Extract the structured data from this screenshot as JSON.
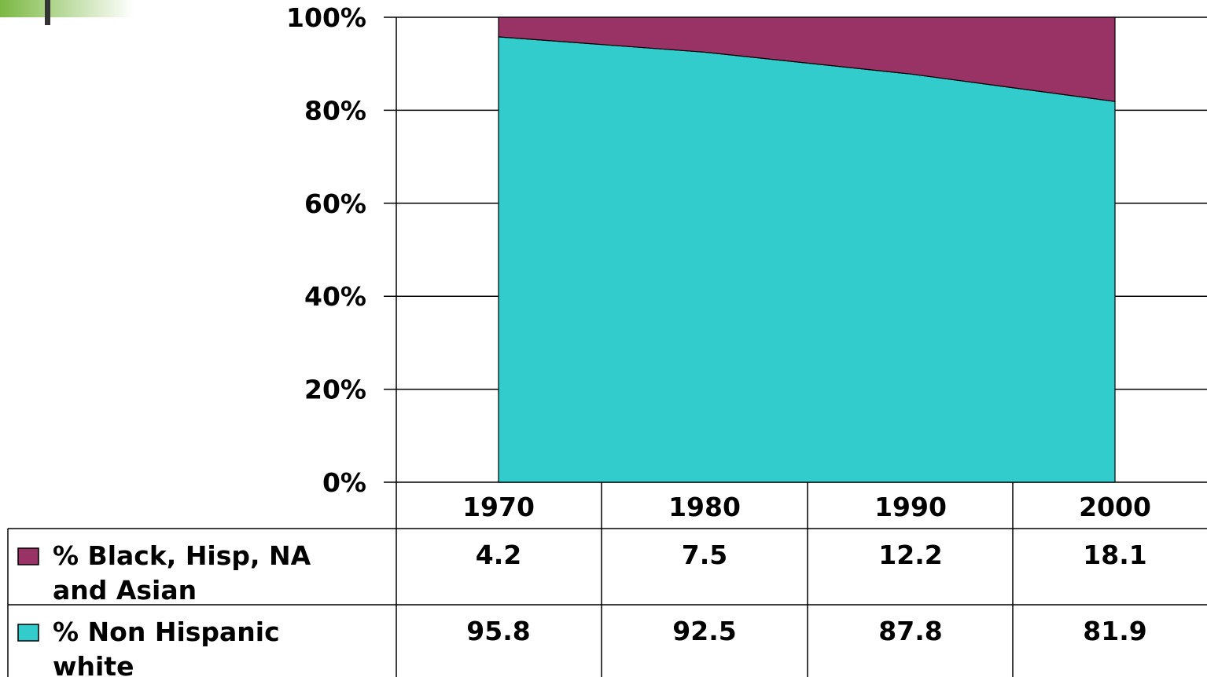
{
  "chart_data": {
    "type": "area",
    "stacked": "percent",
    "title": "",
    "xlabel": "",
    "ylabel": "",
    "categories": [
      "1970",
      "1980",
      "1990",
      "2000"
    ],
    "y_ticks": [
      "0%",
      "20%",
      "40%",
      "60%",
      "80%",
      "100%"
    ],
    "ylim": [
      0,
      100
    ],
    "grid": true,
    "series": [
      {
        "name": "% Non Hispanic white",
        "name_lines": [
          "% Non Hispanic",
          "white"
        ],
        "values": [
          95.8,
          92.5,
          87.8,
          81.9
        ],
        "labels": [
          "95.8",
          "92.5",
          "87.8",
          "81.9"
        ],
        "color": "#33cccc"
      },
      {
        "name": "% Black, Hisp, NA and Asian",
        "name_lines": [
          "% Black, Hisp, NA",
          "and Asian"
        ],
        "values": [
          4.2,
          7.5,
          12.2,
          18.1
        ],
        "labels": [
          "4.2",
          "7.5",
          "12.2",
          "18.1"
        ],
        "color": "#993366"
      }
    ],
    "data_table_order": [
      "% Black, Hisp, NA and Asian",
      "% Non Hispanic white"
    ],
    "legend_placement": "data-table"
  },
  "decoration": {
    "corner_accent_color": "#7bb843",
    "corner_bar_color": "#333333"
  }
}
